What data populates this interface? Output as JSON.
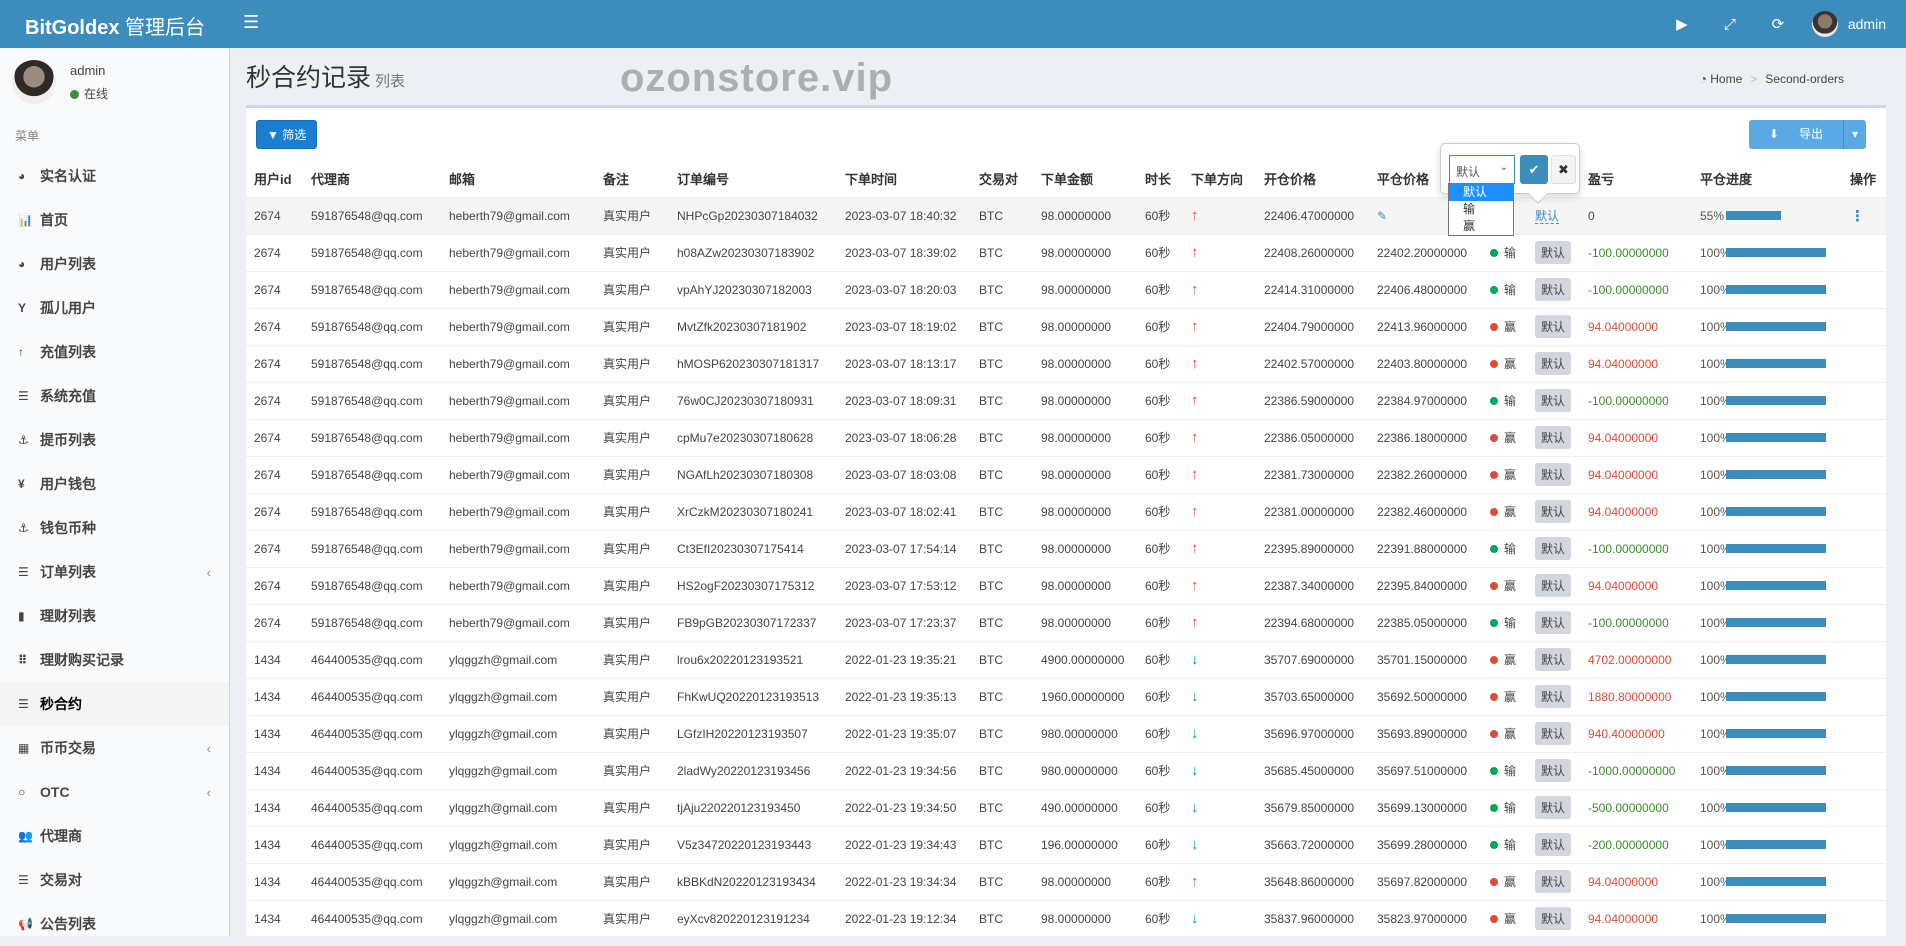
{
  "app": {
    "brand": "BitGoldex",
    "brand_suffix": "管理后台",
    "user": "admin"
  },
  "topbar": {
    "icons": [
      "play-icon",
      "fullscreen-icon",
      "refresh-icon"
    ]
  },
  "sidebar": {
    "user": {
      "name": "admin",
      "status": "在线"
    },
    "menu_header": "菜单",
    "items": [
      {
        "label": "实名认证",
        "icon": "drupal-icon",
        "glyph": "◕"
      },
      {
        "label": "首页",
        "icon": "bar-chart-icon",
        "glyph": "📊"
      },
      {
        "label": "用户列表",
        "icon": "drupal-icon",
        "glyph": "◕"
      },
      {
        "label": "孤儿用户",
        "icon": "child-icon",
        "glyph": "Y"
      },
      {
        "label": "充值列表",
        "icon": "arrow-up-icon",
        "glyph": "↑"
      },
      {
        "label": "系统充值",
        "icon": "list-icon",
        "glyph": "☰"
      },
      {
        "label": "提币列表",
        "icon": "anchor-icon",
        "glyph": "⚓"
      },
      {
        "label": "用户钱包",
        "icon": "yen-icon",
        "glyph": "¥"
      },
      {
        "label": "钱包币种",
        "icon": "anchor-icon",
        "glyph": "⚓"
      },
      {
        "label": "订单列表",
        "icon": "align-center-icon",
        "glyph": "☰",
        "chevron": "‹"
      },
      {
        "label": "理财列表",
        "icon": "fax-icon",
        "glyph": "▮"
      },
      {
        "label": "理财购买记录",
        "icon": "th-icon",
        "glyph": "⠿"
      },
      {
        "label": "秒合约",
        "icon": "list-icon",
        "glyph": "☰",
        "active": true
      },
      {
        "label": "币币交易",
        "icon": "building-icon",
        "glyph": "▦",
        "chevron": "‹"
      },
      {
        "label": "OTC",
        "icon": "circle-notch-icon",
        "glyph": "○",
        "chevron": "‹"
      },
      {
        "label": "代理商",
        "icon": "users-icon",
        "glyph": "👥"
      },
      {
        "label": "交易对",
        "icon": "list-icon",
        "glyph": "☰"
      },
      {
        "label": "公告列表",
        "icon": "bullhorn-icon",
        "glyph": "📢"
      }
    ]
  },
  "page": {
    "title": "秒合约记录",
    "subtitle": "列表",
    "breadcrumb": {
      "home": "Home",
      "current": "Second-orders"
    }
  },
  "toolbar": {
    "filter": "筛选",
    "export": "导出"
  },
  "popover": {
    "selected": "默认",
    "options": [
      "默认",
      "输",
      "赢"
    ]
  },
  "watermark": "ozonstore.vip",
  "colors": {
    "primary": "#3c8dbc",
    "win": "#dd4b39",
    "loss": "#00a65a"
  },
  "table": {
    "headers": [
      "用户id",
      "代理商",
      "邮箱",
      "备注",
      "订单编号",
      "下单时间",
      "交易对",
      "下单金额",
      "时长",
      "下单方向",
      "开仓价格",
      "平仓价格",
      "",
      "",
      "盈亏",
      "平仓进度",
      "操作"
    ],
    "rows": [
      {
        "uid": "2674",
        "agent": "591876548@qq.com",
        "email": "heberth79@gmail.com",
        "note": "真实用户",
        "order": "NHPcGp20230307184032",
        "time": "2023-03-07 18:40:32",
        "pair": "BTC",
        "amount": "98.00000000",
        "dur": "60秒",
        "dir": "up",
        "open": "22406.47000000",
        "close": "",
        "result": "",
        "control": "默认",
        "pnl": "0",
        "progress": 55
      },
      {
        "uid": "2674",
        "agent": "591876548@qq.com",
        "email": "heberth79@gmail.com",
        "note": "真实用户",
        "order": "h08AZw20230307183902",
        "time": "2023-03-07 18:39:02",
        "pair": "BTC",
        "amount": "98.00000000",
        "dur": "60秒",
        "dir": "up",
        "open": "22408.26000000",
        "close": "22402.20000000",
        "result": "输",
        "control": "默认",
        "pnl": "-100.00000000",
        "progress": 100
      },
      {
        "uid": "2674",
        "agent": "591876548@qq.com",
        "email": "heberth79@gmail.com",
        "note": "真实用户",
        "order": "vpAhYJ20230307182003",
        "time": "2023-03-07 18:20:03",
        "pair": "BTC",
        "amount": "98.00000000",
        "dur": "60秒",
        "dir": "up",
        "open": "22414.31000000",
        "close": "22406.48000000",
        "result": "输",
        "control": "默认",
        "pnl": "-100.00000000",
        "progress": 100
      },
      {
        "uid": "2674",
        "agent": "591876548@qq.com",
        "email": "heberth79@gmail.com",
        "note": "真实用户",
        "order": "MvtZfk20230307181902",
        "time": "2023-03-07 18:19:02",
        "pair": "BTC",
        "amount": "98.00000000",
        "dur": "60秒",
        "dir": "up",
        "open": "22404.79000000",
        "close": "22413.96000000",
        "result": "赢",
        "control": "默认",
        "pnl": "94.04000000",
        "progress": 100
      },
      {
        "uid": "2674",
        "agent": "591876548@qq.com",
        "email": "heberth79@gmail.com",
        "note": "真实用户",
        "order": "hMOSP620230307181317",
        "time": "2023-03-07 18:13:17",
        "pair": "BTC",
        "amount": "98.00000000",
        "dur": "60秒",
        "dir": "up",
        "open": "22402.57000000",
        "close": "22403.80000000",
        "result": "赢",
        "control": "默认",
        "pnl": "94.04000000",
        "progress": 100
      },
      {
        "uid": "2674",
        "agent": "591876548@qq.com",
        "email": "heberth79@gmail.com",
        "note": "真实用户",
        "order": "76w0CJ20230307180931",
        "time": "2023-03-07 18:09:31",
        "pair": "BTC",
        "amount": "98.00000000",
        "dur": "60秒",
        "dir": "up",
        "open": "22386.59000000",
        "close": "22384.97000000",
        "result": "输",
        "control": "默认",
        "pnl": "-100.00000000",
        "progress": 100
      },
      {
        "uid": "2674",
        "agent": "591876548@qq.com",
        "email": "heberth79@gmail.com",
        "note": "真实用户",
        "order": "cpMu7e20230307180628",
        "time": "2023-03-07 18:06:28",
        "pair": "BTC",
        "amount": "98.00000000",
        "dur": "60秒",
        "dir": "up",
        "open": "22386.05000000",
        "close": "22386.18000000",
        "result": "赢",
        "control": "默认",
        "pnl": "94.04000000",
        "progress": 100
      },
      {
        "uid": "2674",
        "agent": "591876548@qq.com",
        "email": "heberth79@gmail.com",
        "note": "真实用户",
        "order": "NGAfLh20230307180308",
        "time": "2023-03-07 18:03:08",
        "pair": "BTC",
        "amount": "98.00000000",
        "dur": "60秒",
        "dir": "up",
        "open": "22381.73000000",
        "close": "22382.26000000",
        "result": "赢",
        "control": "默认",
        "pnl": "94.04000000",
        "progress": 100
      },
      {
        "uid": "2674",
        "agent": "591876548@qq.com",
        "email": "heberth79@gmail.com",
        "note": "真实用户",
        "order": "XrCzkM20230307180241",
        "time": "2023-03-07 18:02:41",
        "pair": "BTC",
        "amount": "98.00000000",
        "dur": "60秒",
        "dir": "up",
        "open": "22381.00000000",
        "close": "22382.46000000",
        "result": "赢",
        "control": "默认",
        "pnl": "94.04000000",
        "progress": 100
      },
      {
        "uid": "2674",
        "agent": "591876548@qq.com",
        "email": "heberth79@gmail.com",
        "note": "真实用户",
        "order": "Ct3EfI20230307175414",
        "time": "2023-03-07 17:54:14",
        "pair": "BTC",
        "amount": "98.00000000",
        "dur": "60秒",
        "dir": "up",
        "open": "22395.89000000",
        "close": "22391.88000000",
        "result": "输",
        "control": "默认",
        "pnl": "-100.00000000",
        "progress": 100
      },
      {
        "uid": "2674",
        "agent": "591876548@qq.com",
        "email": "heberth79@gmail.com",
        "note": "真实用户",
        "order": "HS2ogF20230307175312",
        "time": "2023-03-07 17:53:12",
        "pair": "BTC",
        "amount": "98.00000000",
        "dur": "60秒",
        "dir": "up",
        "open": "22387.34000000",
        "close": "22395.84000000",
        "result": "赢",
        "control": "默认",
        "pnl": "94.04000000",
        "progress": 100
      },
      {
        "uid": "2674",
        "agent": "591876548@qq.com",
        "email": "heberth79@gmail.com",
        "note": "真实用户",
        "order": "FB9pGB20230307172337",
        "time": "2023-03-07 17:23:37",
        "pair": "BTC",
        "amount": "98.00000000",
        "dur": "60秒",
        "dir": "up",
        "open": "22394.68000000",
        "close": "22385.05000000",
        "result": "输",
        "control": "默认",
        "pnl": "-100.00000000",
        "progress": 100
      },
      {
        "uid": "1434",
        "agent": "464400535@qq.com",
        "email": "ylqggzh@gmail.com",
        "note": "真实用户",
        "order": "lrou6x20220123193521",
        "time": "2022-01-23 19:35:21",
        "pair": "BTC",
        "amount": "4900.00000000",
        "dur": "60秒",
        "dir": "down",
        "open": "35707.69000000",
        "close": "35701.15000000",
        "result": "赢",
        "control": "默认",
        "pnl": "4702.00000000",
        "progress": 100
      },
      {
        "uid": "1434",
        "agent": "464400535@qq.com",
        "email": "ylqggzh@gmail.com",
        "note": "真实用户",
        "order": "FhKwUQ20220123193513",
        "time": "2022-01-23 19:35:13",
        "pair": "BTC",
        "amount": "1960.00000000",
        "dur": "60秒",
        "dir": "down",
        "open": "35703.65000000",
        "close": "35692.50000000",
        "result": "赢",
        "control": "默认",
        "pnl": "1880.80000000",
        "progress": 100
      },
      {
        "uid": "1434",
        "agent": "464400535@qq.com",
        "email": "ylqggzh@gmail.com",
        "note": "真实用户",
        "order": "LGfzIH20220123193507",
        "time": "2022-01-23 19:35:07",
        "pair": "BTC",
        "amount": "980.00000000",
        "dur": "60秒",
        "dir": "down",
        "open": "35696.97000000",
        "close": "35693.89000000",
        "result": "赢",
        "control": "默认",
        "pnl": "940.40000000",
        "progress": 100
      },
      {
        "uid": "1434",
        "agent": "464400535@qq.com",
        "email": "ylqggzh@gmail.com",
        "note": "真实用户",
        "order": "2ladWy20220123193456",
        "time": "2022-01-23 19:34:56",
        "pair": "BTC",
        "amount": "980.00000000",
        "dur": "60秒",
        "dir": "down",
        "open": "35685.45000000",
        "close": "35697.51000000",
        "result": "输",
        "control": "默认",
        "pnl": "-1000.00000000",
        "progress": 100
      },
      {
        "uid": "1434",
        "agent": "464400535@qq.com",
        "email": "ylqggzh@gmail.com",
        "note": "真实用户",
        "order": "tjAju220220123193450",
        "time": "2022-01-23 19:34:50",
        "pair": "BTC",
        "amount": "490.00000000",
        "dur": "60秒",
        "dir": "down",
        "open": "35679.85000000",
        "close": "35699.13000000",
        "result": "输",
        "control": "默认",
        "pnl": "-500.00000000",
        "progress": 100
      },
      {
        "uid": "1434",
        "agent": "464400535@qq.com",
        "email": "ylqggzh@gmail.com",
        "note": "真实用户",
        "order": "V5z34720220123193443",
        "time": "2022-01-23 19:34:43",
        "pair": "BTC",
        "amount": "196.00000000",
        "dur": "60秒",
        "dir": "down",
        "open": "35663.72000000",
        "close": "35699.28000000",
        "result": "输",
        "control": "默认",
        "pnl": "-200.00000000",
        "progress": 100
      },
      {
        "uid": "1434",
        "agent": "464400535@qq.com",
        "email": "ylqggzh@gmail.com",
        "note": "真实用户",
        "order": "kBBKdN20220123193434",
        "time": "2022-01-23 19:34:34",
        "pair": "BTC",
        "amount": "98.00000000",
        "dur": "60秒",
        "dir": "up",
        "open": "35648.86000000",
        "close": "35697.82000000",
        "result": "赢",
        "control": "默认",
        "pnl": "94.04000000",
        "progress": 100
      },
      {
        "uid": "1434",
        "agent": "464400535@qq.com",
        "email": "ylqggzh@gmail.com",
        "note": "真实用户",
        "order": "eyXcv820220123191234",
        "time": "2022-01-23 19:12:34",
        "pair": "BTC",
        "amount": "98.00000000",
        "dur": "60秒",
        "dir": "down",
        "open": "35837.96000000",
        "close": "35823.97000000",
        "result": "赢",
        "control": "默认",
        "pnl": "94.04000000",
        "progress": 100
      }
    ]
  }
}
